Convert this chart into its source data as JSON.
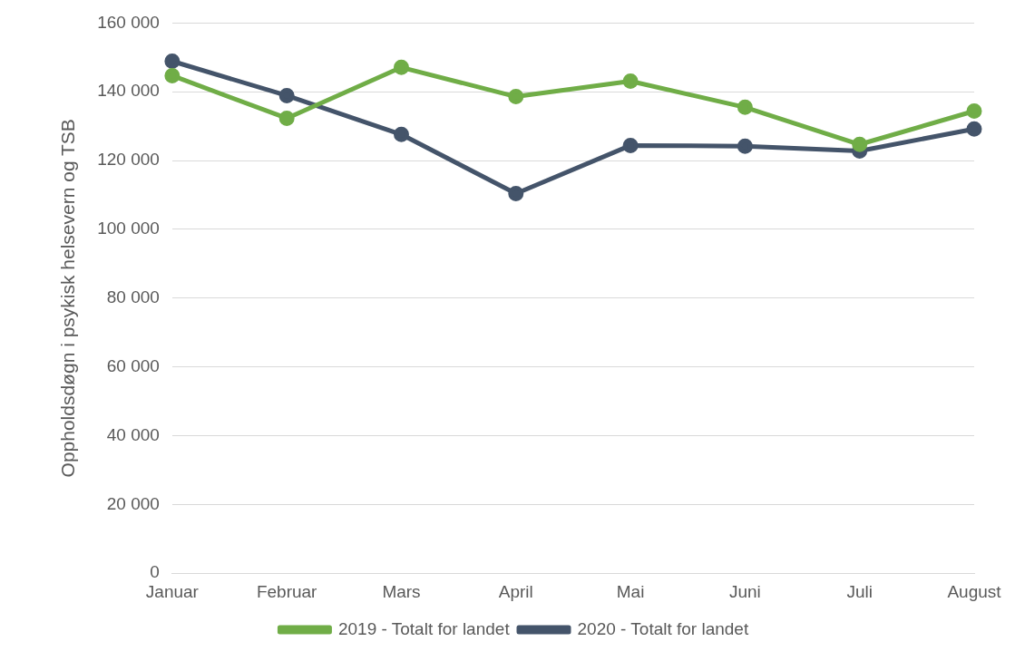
{
  "chart_data": {
    "type": "line",
    "ylabel": "Oppholdsdøgn i psykisk helsevern og TSB",
    "categories": [
      "Januar",
      "Februar",
      "Mars",
      "April",
      "Mai",
      "Juni",
      "Juli",
      "August"
    ],
    "series": [
      {
        "name": "2019 - Totalt for landet",
        "color": "#70ad47",
        "values": [
          144700,
          132300,
          147100,
          138600,
          143100,
          135500,
          124700,
          134400
        ]
      },
      {
        "name": "2020 - Totalt for landet",
        "color": "#44546a",
        "values": [
          148900,
          138900,
          127600,
          110400,
          124400,
          124200,
          122800,
          129200
        ]
      }
    ],
    "ylim": [
      0,
      160000
    ],
    "yticks": [
      {
        "value": 0,
        "label": "0"
      },
      {
        "value": 20000,
        "label": "20 000"
      },
      {
        "value": 40000,
        "label": "40 000"
      },
      {
        "value": 60000,
        "label": "60 000"
      },
      {
        "value": 80000,
        "label": "80 000"
      },
      {
        "value": 100000,
        "label": "100 000"
      },
      {
        "value": 120000,
        "label": "120 000"
      },
      {
        "value": 140000,
        "label": "140 000"
      },
      {
        "value": 160000,
        "label": "160 000"
      }
    ],
    "grid": "y",
    "legend": "bottom",
    "marker": "circle",
    "line_style": "solid"
  }
}
